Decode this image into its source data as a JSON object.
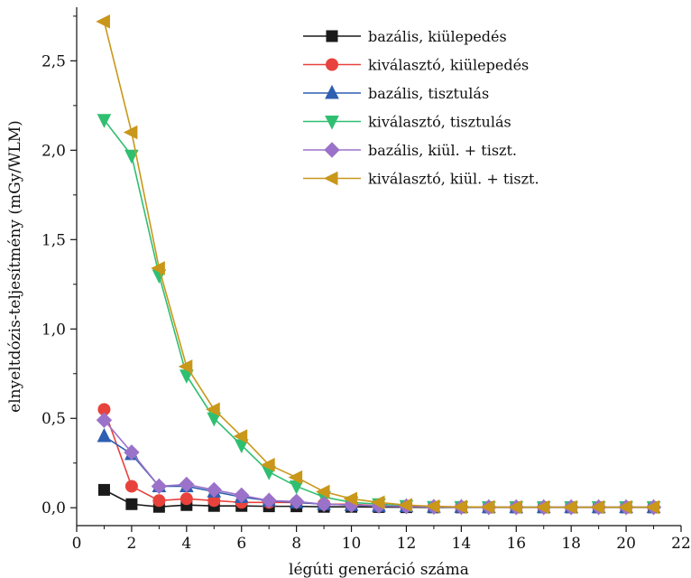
{
  "chart_data": {
    "type": "line",
    "title": "",
    "xlabel": "légúti generáció száma",
    "ylabel": "elnyeltdózis-teljesítmény (mGy/WLM)",
    "xlim": [
      0,
      22
    ],
    "ylim": [
      -0.1,
      2.8
    ],
    "x_ticks": [
      0,
      2,
      4,
      6,
      8,
      10,
      12,
      14,
      16,
      18,
      20,
      22
    ],
    "y_ticks": [
      0.0,
      0.5,
      1.0,
      1.5,
      2.0,
      2.5
    ],
    "x_tick_labels": [
      "0",
      "2",
      "4",
      "6",
      "8",
      "10",
      "12",
      "14",
      "16",
      "18",
      "20",
      "22"
    ],
    "y_tick_labels": [
      "0,0",
      "0,5",
      "1,0",
      "1,5",
      "2,0",
      "2,5"
    ],
    "grid": false,
    "legend_position": "top-right",
    "x": [
      1,
      2,
      3,
      4,
      5,
      6,
      7,
      8,
      9,
      10,
      11,
      12,
      13,
      14,
      15,
      16,
      17,
      18,
      19,
      20,
      21
    ],
    "series": [
      {
        "name": "bazális, kiülepedés",
        "color": "#1a1a1a",
        "marker": "square",
        "values": [
          0.1,
          0.02,
          0.005,
          0.015,
          0.01,
          0.01,
          0.008,
          0.008,
          0.005,
          0.005,
          0.004,
          0.003,
          0.002,
          0.002,
          0.002,
          0.002,
          0.002,
          0.002,
          0.002,
          0.002,
          0.002
        ]
      },
      {
        "name": "kiválasztó, kiülepedés",
        "color": "#e8423d",
        "marker": "circle",
        "values": [
          0.55,
          0.12,
          0.04,
          0.05,
          0.04,
          0.03,
          0.03,
          0.03,
          0.02,
          0.02,
          0.01,
          0.008,
          0.005,
          0.004,
          0.003,
          0.003,
          0.003,
          0.003,
          0.003,
          0.003,
          0.003
        ]
      },
      {
        "name": "bazális, tisztulás",
        "color": "#2e5fb0",
        "marker": "triangle-up",
        "values": [
          0.4,
          0.3,
          0.12,
          0.12,
          0.09,
          0.06,
          0.04,
          0.03,
          0.02,
          0.015,
          0.01,
          0.008,
          0.005,
          0.004,
          0.003,
          0.003,
          0.003,
          0.003,
          0.003,
          0.003,
          0.003
        ]
      },
      {
        "name": "kiválasztó, tisztulás",
        "color": "#2fbf71",
        "marker": "triangle-down",
        "values": [
          2.17,
          1.97,
          1.3,
          0.74,
          0.5,
          0.35,
          0.2,
          0.12,
          0.06,
          0.03,
          0.02,
          0.01,
          0.005,
          0.004,
          0.003,
          0.003,
          0.003,
          0.003,
          0.003,
          0.003,
          0.003
        ]
      },
      {
        "name": "bazális, kiül. + tiszt.",
        "color": "#9b72c9",
        "marker": "diamond",
        "values": [
          0.49,
          0.31,
          0.12,
          0.13,
          0.1,
          0.07,
          0.04,
          0.035,
          0.02,
          0.015,
          0.01,
          0.008,
          0.005,
          0.004,
          0.003,
          0.003,
          0.003,
          0.003,
          0.003,
          0.003,
          0.003
        ]
      },
      {
        "name": "kiválasztó, kiül. + tiszt.",
        "color": "#c9971a",
        "marker": "triangle-left",
        "values": [
          2.72,
          2.1,
          1.34,
          0.79,
          0.55,
          0.4,
          0.24,
          0.17,
          0.09,
          0.05,
          0.03,
          0.015,
          0.008,
          0.005,
          0.004,
          0.003,
          0.003,
          0.003,
          0.003,
          0.003,
          0.003
        ]
      }
    ]
  }
}
